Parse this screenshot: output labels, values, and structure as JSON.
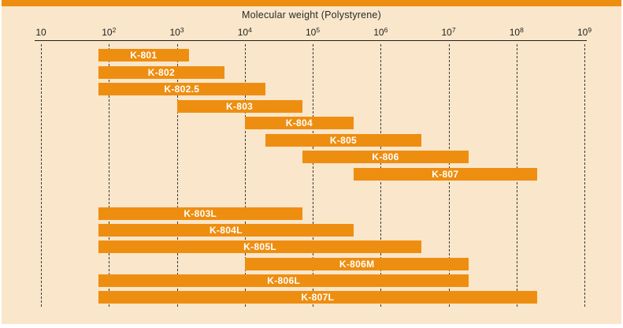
{
  "chart_data": {
    "type": "bar",
    "subtype": "horizontal-range-bars",
    "title": "Molecular weight (Polystyrene)",
    "xlabel": "Molecular weight (Polystyrene)",
    "ylabel": "",
    "x_axis": {
      "scale": "log10",
      "min": 10,
      "max": 1000000000,
      "tick_base": "10",
      "tick_exponents": [
        1,
        2,
        3,
        4,
        5,
        6,
        7,
        8,
        9
      ],
      "tick_labels": [
        "10",
        "10^2",
        "10^3",
        "10^4",
        "10^5",
        "10^6",
        "10^7",
        "10^8",
        "10^9"
      ]
    },
    "grid": "vertical-dashed",
    "legend": "none",
    "bars": [
      {
        "label": "K-801",
        "min": 70,
        "max": 1500,
        "group": 1
      },
      {
        "label": "K-802",
        "min": 70,
        "max": 5000,
        "group": 1
      },
      {
        "label": "K-802.5",
        "min": 70,
        "max": 20000,
        "group": 1
      },
      {
        "label": "K-803",
        "min": 1000,
        "max": 70000,
        "group": 1
      },
      {
        "label": "K-804",
        "min": 10000,
        "max": 400000,
        "group": 1
      },
      {
        "label": "K-805",
        "min": 20000,
        "max": 4000000,
        "group": 1
      },
      {
        "label": "K-806",
        "min": 70000,
        "max": 20000000,
        "group": 1
      },
      {
        "label": "K-807",
        "min": 400000,
        "max": 200000000,
        "group": 1
      },
      {
        "label": "K-803L",
        "min": 70,
        "max": 70000,
        "group": 2
      },
      {
        "label": "K-804L",
        "min": 70,
        "max": 400000,
        "group": 2
      },
      {
        "label": "K-805L",
        "min": 70,
        "max": 4000000,
        "group": 2
      },
      {
        "label": "K-806M",
        "min": 10000,
        "max": 20000000,
        "group": 2
      },
      {
        "label": "K-806L",
        "min": 70,
        "max": 20000000,
        "group": 2
      },
      {
        "label": "K-807L",
        "min": 70,
        "max": 200000000,
        "group": 2
      }
    ],
    "colors": {
      "bar": "#ee8e11",
      "bar_text": "#ffffff",
      "background": "#fae6ca",
      "accent_bar": "#ee8e11",
      "axis": "#1f1f1f",
      "grid": "#3a3a3a",
      "title_text": "#2a2a2a"
    }
  }
}
